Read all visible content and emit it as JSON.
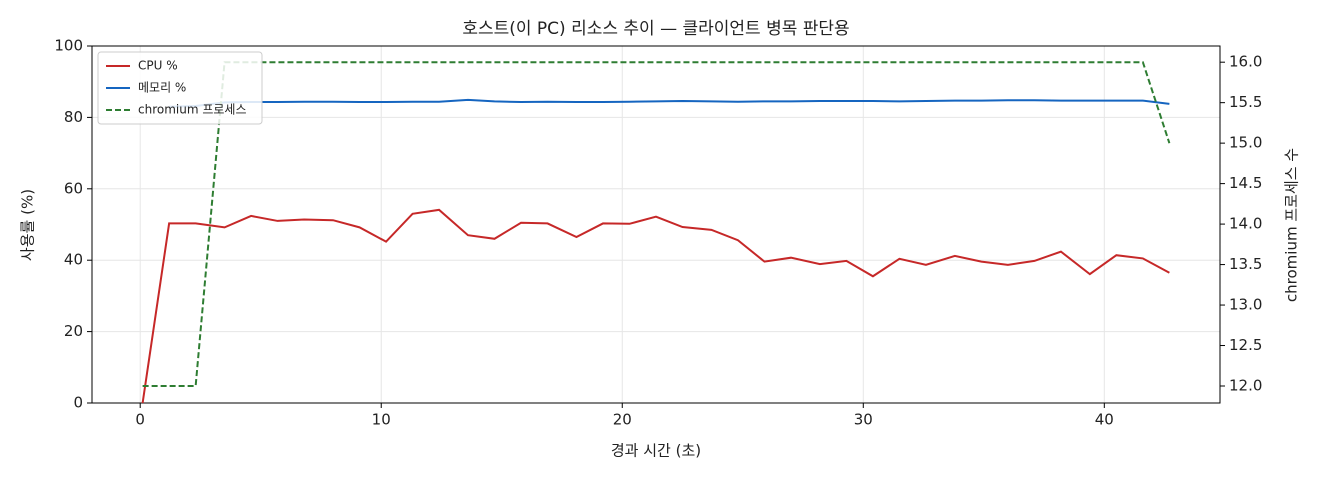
{
  "chart_data": {
    "type": "line",
    "title": "호스트(이 PC) 리소스 추이 — 클라이언트 병목 판단용",
    "x_label": "경과 시간 (초)",
    "y_label": "사용률 (%)",
    "y2_label": "chromium 프로세스 수",
    "x": [
      0.1,
      1.2,
      2.3,
      3.5,
      4.6,
      5.7,
      6.8,
      8.0,
      9.1,
      10.2,
      11.3,
      12.4,
      13.6,
      14.7,
      15.8,
      16.9,
      18.1,
      19.2,
      20.3,
      21.4,
      22.5,
      23.7,
      24.8,
      25.9,
      27.0,
      28.2,
      29.3,
      30.4,
      31.5,
      32.6,
      33.8,
      34.9,
      36.0,
      37.1,
      38.2,
      39.4,
      40.5,
      41.6,
      42.7
    ],
    "series": [
      {
        "name": "CPU %",
        "color": "#c62828",
        "linestyle": "solid",
        "values": [
          0,
          50.3,
          50.3,
          49.2,
          52.4,
          51,
          51.4,
          51.2,
          49.2,
          45.2,
          53,
          54.1,
          47,
          46,
          50.5,
          50.3,
          46.5,
          50.3,
          50.2,
          52.2,
          49.3,
          48.5,
          45.6,
          39.6,
          40.7,
          38.9,
          39.8,
          35.5,
          40.4,
          38.7,
          41.2,
          39.6,
          38.7,
          39.8,
          42.4,
          36.1,
          41.4,
          40.5,
          36.5
        ]
      },
      {
        "name": "메모리 %",
        "color": "#1565c0",
        "linestyle": "solid",
        "values": [
          null,
          83.0,
          83.2,
          84.2,
          84.3,
          84.3,
          84.4,
          84.4,
          84.3,
          84.3,
          84.4,
          84.4,
          84.9,
          84.5,
          84.3,
          84.4,
          84.3,
          84.3,
          84.4,
          84.5,
          84.6,
          84.5,
          84.4,
          84.5,
          84.5,
          84.6,
          84.6,
          84.6,
          84.5,
          84.6,
          84.7,
          84.7,
          84.8,
          84.8,
          84.7,
          84.7,
          84.7,
          84.7,
          83.8
        ]
      },
      {
        "name": "chromium 프로세스",
        "color": "#2e7d32",
        "linestyle": "dashed",
        "axis": "y2",
        "values": [
          12,
          12,
          12,
          16,
          16,
          16,
          16,
          16,
          16,
          16,
          16,
          16,
          16,
          16,
          16,
          16,
          16,
          16,
          16,
          16,
          16,
          16,
          16,
          16,
          16,
          16,
          16,
          16,
          16,
          16,
          16,
          16,
          16,
          16,
          16,
          16,
          16,
          16,
          15
        ]
      }
    ],
    "xlim": [
      -2,
      44.8
    ],
    "xticks": [
      0,
      10,
      20,
      30,
      40
    ],
    "ylim": [
      0,
      100
    ],
    "yticks": [
      0,
      20,
      40,
      60,
      80,
      100
    ],
    "y2lim": [
      11.79,
      16.2
    ],
    "y2ticks": [
      {
        "value": 12,
        "label": "12.0"
      },
      12.5,
      {
        "value": 13,
        "label": "13.0"
      },
      13.5,
      {
        "value": 14,
        "label": "14.0"
      },
      14.5,
      {
        "value": 15,
        "label": "15.0"
      },
      15.5,
      {
        "value": 16,
        "label": "16.0"
      }
    ],
    "grid": true,
    "legend": "upper left"
  }
}
